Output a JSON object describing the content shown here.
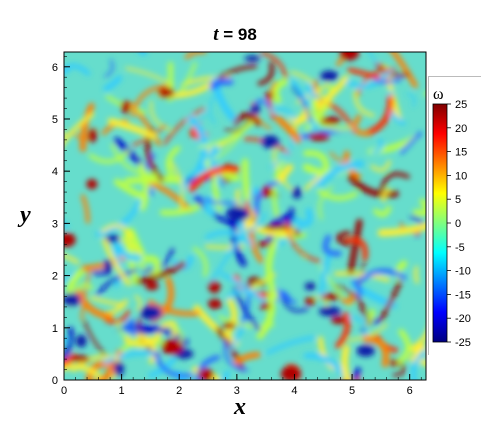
{
  "chart_data": {
    "type": "heatmap",
    "title_var": "t",
    "title_rest": " = 98",
    "xlabel": "x",
    "ylabel": "y",
    "xlim": [
      0,
      6.283
    ],
    "ylim": [
      0,
      6.283
    ],
    "x_ticks": [
      "0",
      "1",
      "2",
      "3",
      "4",
      "5",
      "6"
    ],
    "y_ticks": [
      "0",
      "1",
      "2",
      "3",
      "4",
      "5",
      "6"
    ],
    "colorbar": {
      "label": "ω",
      "range": [
        -25,
        25
      ],
      "ticks": [
        "25",
        "20",
        "15",
        "10",
        "5",
        "0",
        "-5",
        "-10",
        "-15",
        "-20",
        "-25"
      ],
      "colormap": [
        "#00007f",
        "#0000ff",
        "#007fff",
        "#00ffff",
        "#7fff7f",
        "#ffff00",
        "#ff7f00",
        "#ff0000",
        "#7f0000"
      ]
    },
    "background_color": "#66ddcc"
  }
}
